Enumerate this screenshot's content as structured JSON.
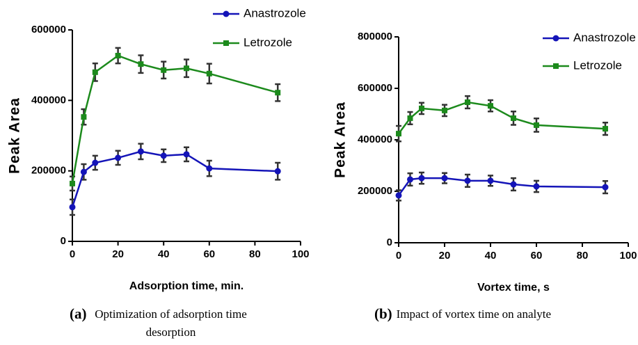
{
  "chart_data": [
    {
      "type": "line",
      "x_label": "Adsorption time, min.",
      "y_label": "Peak  Area",
      "caption": {
        "label": "(a)",
        "text": "Optimization of adsorption time desorption"
      },
      "xlim": [
        0,
        100
      ],
      "xticks": [
        0,
        20,
        40,
        60,
        80,
        100
      ],
      "ylim": [
        0,
        600000
      ],
      "yticks": [
        0,
        200000,
        400000,
        600000
      ],
      "legend": "top-right",
      "x": [
        0,
        5,
        10,
        20,
        30,
        40,
        50,
        60,
        90
      ],
      "series": [
        {
          "name": "Anastrozole",
          "color": "#1414b8",
          "marker": "circle",
          "values": [
            97000,
            197000,
            223000,
            237000,
            255000,
            243000,
            247000,
            207000,
            199000
          ],
          "errors": [
            22000,
            22000,
            20000,
            20000,
            22000,
            18000,
            20000,
            22000,
            24000
          ]
        },
        {
          "name": "Letrozole",
          "color": "#1c8a1c",
          "marker": "square",
          "values": [
            164000,
            353000,
            480000,
            527000,
            503000,
            486000,
            491000,
            476000,
            422000
          ],
          "errors": [
            20000,
            22000,
            25000,
            22000,
            25000,
            24000,
            25000,
            28000,
            24000
          ]
        }
      ]
    },
    {
      "type": "line",
      "x_label": "Vortex time, s",
      "y_label": "Peak  Area",
      "caption": {
        "label": "(b)",
        "text": "Impact of vortex time on analyte"
      },
      "xlim": [
        0,
        100
      ],
      "xticks": [
        0,
        20,
        40,
        60,
        80,
        100
      ],
      "ylim": [
        0,
        800000
      ],
      "yticks": [
        0,
        200000,
        400000,
        600000,
        800000
      ],
      "legend": "top-right",
      "x": [
        0,
        5,
        10,
        20,
        30,
        40,
        50,
        60,
        90
      ],
      "series": [
        {
          "name": "Anastrozole",
          "color": "#1414b8",
          "marker": "circle",
          "values": [
            184000,
            246000,
            251000,
            251000,
            241000,
            241000,
            227000,
            219000,
            216000
          ],
          "errors": [
            20000,
            24000,
            22000,
            20000,
            24000,
            20000,
            24000,
            22000,
            24000
          ]
        },
        {
          "name": "Letrozole",
          "color": "#1c8a1c",
          "marker": "square",
          "values": [
            424000,
            484000,
            522000,
            514000,
            546000,
            532000,
            484000,
            457000,
            443000
          ],
          "errors": [
            30000,
            24000,
            22000,
            22000,
            24000,
            22000,
            26000,
            26000,
            24000
          ]
        }
      ]
    }
  ]
}
